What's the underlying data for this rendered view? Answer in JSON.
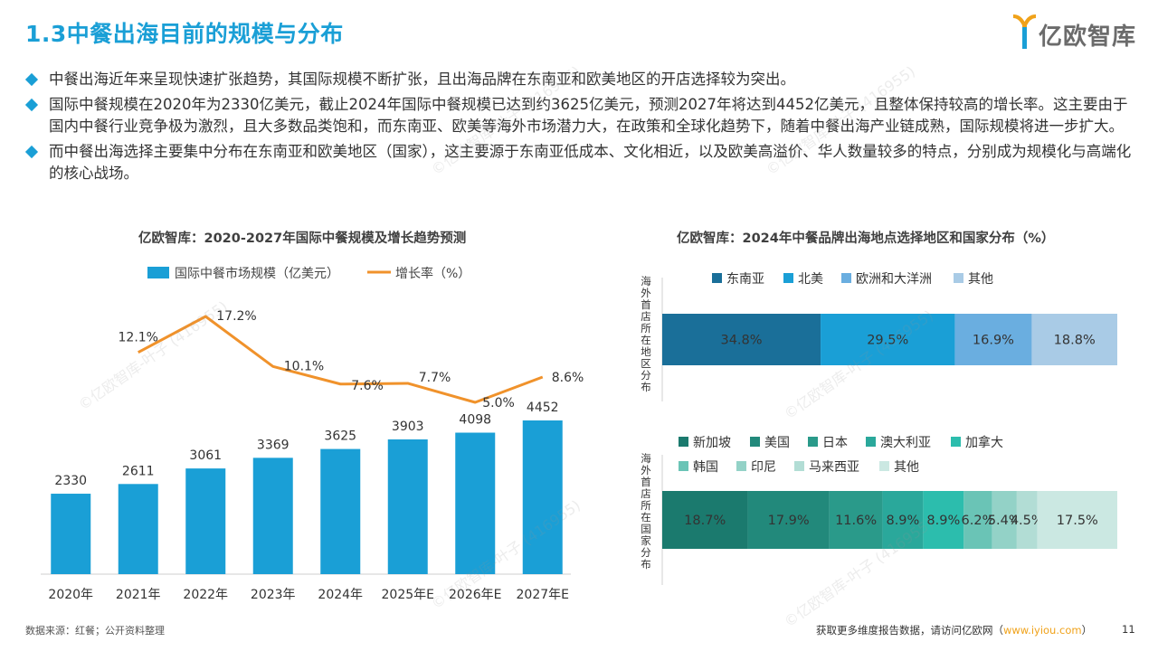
{
  "header": {
    "title": "1.3中餐出海目前的规模与分布",
    "logo_text": "亿欧智库"
  },
  "bullets": [
    "中餐出海近年来呈现快速扩张趋势，其国际规模不断扩张，且出海品牌在东南亚和欧美地区的开店选择较为突出。",
    "国际中餐规模在2020年为2330亿美元，截止2024年国际中餐规模已达到约3625亿美元，预测2027年将达到4452亿美元，且整体保持较高的增长率。这主要由于国内中餐行业竞争极为激烈，且大多数品类饱和，而东南亚、欧美等海外市场潜力大，在政策和全球化趋势下，随着中餐出海产业链成熟，国际规模将进一步扩大。",
    "而中餐出海选择主要集中分布在东南亚和欧美地区（国家），这主要源于东南亚低成本、文化相近，以及欧美高溢价、华人数量较多的特点，分别成为规模化与高端化的核心战场。"
  ],
  "colors": {
    "title": "#1a9fd6",
    "bar": "#1a9fd6",
    "line": "#f0922b"
  },
  "chart_data": [
    {
      "type": "bar",
      "title": "亿欧智库：2020-2027年国际中餐规模及增长趋势预测",
      "categories": [
        "2020年",
        "2021年",
        "2022年",
        "2023年",
        "2024年",
        "2025年E",
        "2026年E",
        "2027年E"
      ],
      "series": [
        {
          "name": "国际中餐市场规模（亿美元）",
          "type": "bar",
          "values": [
            2330,
            2611,
            3061,
            3369,
            3625,
            3903,
            4098,
            4452
          ],
          "labels": [
            "2330",
            "2611",
            "3061",
            "3369",
            "3625",
            "3903",
            "4098",
            "4452"
          ]
        },
        {
          "name": "增长率（%）",
          "type": "line",
          "values": [
            null,
            12.1,
            17.2,
            10.1,
            7.6,
            7.7,
            5.0,
            8.6
          ],
          "labels": [
            "",
            "12.1%",
            "17.2%",
            "10.1%",
            "7.6%",
            "7.7%",
            "5.0%",
            "8.6%"
          ]
        }
      ],
      "legend": "top"
    },
    {
      "type": "bar",
      "title": "亿欧智库：2024年中餐品牌出海地点选择地区和国家分布（%）",
      "stacked": true,
      "orientation": "horizontal",
      "bars": [
        {
          "label": "海外首店所在地区分布",
          "segments": [
            {
              "name": "东南亚",
              "value": 34.8,
              "label": "34.8%",
              "color": "#1a6f99"
            },
            {
              "name": "北美",
              "value": 29.5,
              "label": "29.5%",
              "color": "#1a9fd6"
            },
            {
              "name": "欧洲和大洋洲",
              "value": 16.9,
              "label": "16.9%",
              "color": "#6aaee0"
            },
            {
              "name": "其他",
              "value": 18.8,
              "label": "18.8%",
              "color": "#a9cbe6"
            }
          ]
        },
        {
          "label": "海外首店所在国家分布",
          "segments": [
            {
              "name": "新加坡",
              "value": 18.7,
              "label": "18.7%",
              "color": "#1b7a6e"
            },
            {
              "name": "美国",
              "value": 17.9,
              "label": "17.9%",
              "color": "#22897b"
            },
            {
              "name": "日本",
              "value": 11.6,
              "label": "11.6%",
              "color": "#2a9a8a"
            },
            {
              "name": "澳大利亚",
              "value": 8.9,
              "label": "8.9%",
              "color": "#2aa89b"
            },
            {
              "name": "加拿大",
              "value": 8.9,
              "label": "8.9%",
              "color": "#2cbdad"
            },
            {
              "name": "韩国",
              "value": 6.2,
              "label": "6.2%",
              "color": "#6ac4b6"
            },
            {
              "name": "印尼",
              "value": 5.4,
              "label": "5.4%",
              "color": "#93d2c7"
            },
            {
              "name": "马来西亚",
              "value": 4.5,
              "label": "4.5%",
              "color": "#b2ddd5"
            },
            {
              "name": "其他",
              "value": 17.5,
              "label": "17.5%",
              "color": "#cbe8e2"
            }
          ]
        }
      ]
    }
  ],
  "footer": {
    "source": "数据来源：红餐；公开资料整理",
    "more_info": "获取更多维度报告数据，请访问亿欧网（",
    "link": "www.iyiou.com",
    "more_info_end": "）",
    "page": "11"
  },
  "watermark": "©亿欧智库-叶子 (416955)"
}
